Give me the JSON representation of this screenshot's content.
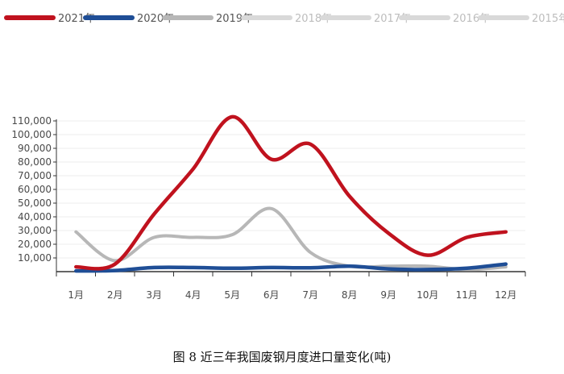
{
  "chart_data": {
    "type": "line",
    "title": "",
    "xlabel": "",
    "ylabel": "",
    "categories": [
      "1月",
      "2月",
      "3月",
      "4月",
      "5月",
      "6月",
      "7月",
      "8月",
      "9月",
      "10月",
      "11月",
      "12月"
    ],
    "ylim": [
      0,
      110000
    ],
    "yticks": [
      {
        "value": 10000,
        "label": "10,000"
      },
      {
        "value": 20000,
        "label": "20,000"
      },
      {
        "value": 30000,
        "label": "30,000"
      },
      {
        "value": 40000,
        "label": "40,000"
      },
      {
        "value": 50000,
        "label": "50,000"
      },
      {
        "value": 60000,
        "label": "60,000"
      },
      {
        "value": 70000,
        "label": "70,000"
      },
      {
        "value": 80000,
        "label": "80,000"
      },
      {
        "value": 90000,
        "label": "90,000"
      },
      {
        "value": 100000,
        "label": "100,000"
      },
      {
        "value": 110000,
        "label": "110,000"
      }
    ],
    "legend": [
      {
        "name": "2021年",
        "color": "#c0121e"
      },
      {
        "name": "2020年",
        "color": "#1f4e96"
      },
      {
        "name": "2019年",
        "color": "#b7b7b7"
      },
      {
        "name": "2018年",
        "color": "#d9d9d9"
      },
      {
        "name": "2017年",
        "color": "#d9d9d9"
      },
      {
        "name": "2016年",
        "color": "#d9d9d9"
      },
      {
        "name": "2015年",
        "color": "#d9d9d9"
      }
    ],
    "series": [
      {
        "name": "2021年",
        "color": "#c0121e",
        "values": [
          3500,
          5500,
          42000,
          75000,
          113000,
          82000,
          93000,
          55000,
          28000,
          12000,
          25000,
          29000
        ]
      },
      {
        "name": "2020年",
        "color": "#1f4e96",
        "values": [
          500,
          800,
          3000,
          3000,
          2500,
          3000,
          2800,
          4000,
          2000,
          1500,
          2500,
          5500
        ]
      },
      {
        "name": "2019年",
        "color": "#b7b7b7",
        "values": [
          29000,
          8000,
          25000,
          25000,
          27000,
          46000,
          14000,
          4000,
          4000,
          4000,
          1500,
          3500
        ]
      }
    ]
  },
  "caption": "图 8  近三年我国废钢月度进口量变化(吨)"
}
